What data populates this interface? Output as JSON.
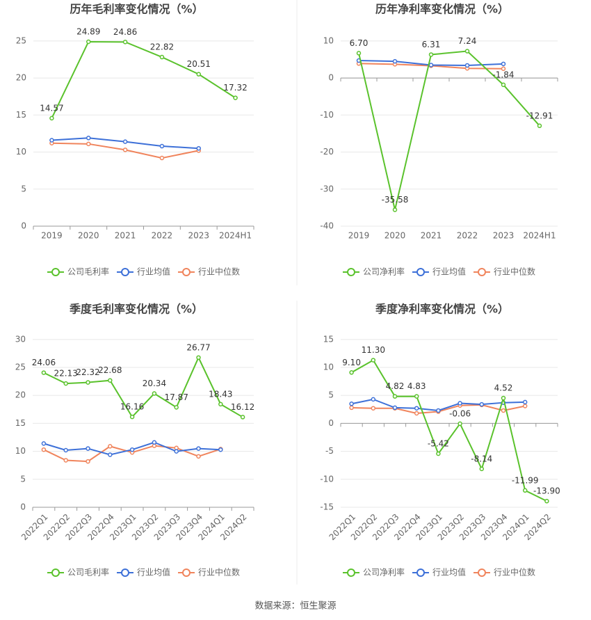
{
  "chart_data": [
    {
      "type": "line",
      "title": "历年毛利率变化情况（%）",
      "categories": [
        "2019",
        "2020",
        "2021",
        "2022",
        "2023",
        "2024H1"
      ],
      "series": [
        {
          "name": "公司毛利率",
          "color": "#5ac22c",
          "values": [
            14.57,
            24.89,
            24.86,
            22.82,
            20.51,
            17.32
          ],
          "value_labels": [
            "14.57",
            "24.89",
            "24.86",
            "22.82",
            "20.51",
            "17.32"
          ]
        },
        {
          "name": "行业均值",
          "color": "#3d70d8",
          "values": [
            11.6,
            11.9,
            11.4,
            10.8,
            10.5,
            null
          ]
        },
        {
          "name": "行业中位数",
          "color": "#f0845c",
          "values": [
            11.2,
            11.1,
            10.3,
            9.2,
            10.2,
            null
          ]
        }
      ],
      "ylim": [
        0,
        26.3
      ],
      "yticks": [
        0,
        5,
        10,
        15,
        20,
        25
      ],
      "grid": true
    },
    {
      "type": "line",
      "title": "历年净利率变化情况（%）",
      "categories": [
        "2019",
        "2020",
        "2021",
        "2022",
        "2023",
        "2024H1"
      ],
      "series": [
        {
          "name": "公司净利率",
          "color": "#5ac22c",
          "values": [
            6.7,
            -35.58,
            6.31,
            7.24,
            -1.84,
            -12.91
          ],
          "value_labels": [
            "6.70",
            "-35.58",
            "6.31",
            "7.24",
            "-1.84",
            "-12.91"
          ]
        },
        {
          "name": "行业均值",
          "color": "#3d70d8",
          "values": [
            4.7,
            4.5,
            3.5,
            3.4,
            3.8,
            null
          ]
        },
        {
          "name": "行业中位数",
          "color": "#f0845c",
          "values": [
            3.9,
            3.7,
            3.3,
            2.6,
            2.5,
            null
          ]
        }
      ],
      "ylim": [
        -40,
        12.6
      ],
      "yticks": [
        -40,
        -30,
        -20,
        -10,
        0,
        10
      ],
      "grid": true
    },
    {
      "type": "line",
      "title": "季度毛利率变化情况（%）",
      "categories": [
        "2022Q1",
        "2022Q2",
        "2022Q3",
        "2022Q4",
        "2023Q1",
        "2023Q2",
        "2023Q3",
        "2023Q4",
        "2024Q1",
        "2024Q2"
      ],
      "series": [
        {
          "name": "公司毛利率",
          "color": "#5ac22c",
          "values": [
            24.06,
            22.13,
            22.32,
            22.68,
            16.16,
            20.34,
            17.87,
            26.77,
            18.43,
            16.12
          ],
          "value_labels": [
            "24.06",
            "22.13",
            "22.32",
            "22.68",
            "16.16",
            "20.34",
            "17.87",
            "26.77",
            "18.43",
            "16.12"
          ]
        },
        {
          "name": "行业均值",
          "color": "#3d70d8",
          "values": [
            11.4,
            10.2,
            10.5,
            9.4,
            10.3,
            11.6,
            10.0,
            10.5,
            10.3,
            null
          ]
        },
        {
          "name": "行业中位数",
          "color": "#f0845c",
          "values": [
            10.3,
            8.4,
            8.2,
            10.9,
            9.8,
            11.0,
            10.6,
            9.1,
            10.4,
            null
          ]
        }
      ],
      "ylim": [
        0,
        31.6
      ],
      "yticks": [
        0,
        5,
        10,
        15,
        20,
        25,
        30
      ],
      "grid": true
    },
    {
      "type": "line",
      "title": "季度净利率变化情况（%）",
      "categories": [
        "2022Q1",
        "2022Q2",
        "2022Q3",
        "2022Q4",
        "2023Q1",
        "2023Q2",
        "2023Q3",
        "2023Q4",
        "2024Q1",
        "2024Q2"
      ],
      "series": [
        {
          "name": "公司净利率",
          "color": "#5ac22c",
          "values": [
            9.1,
            11.3,
            4.82,
            4.83,
            -5.42,
            -0.06,
            -8.14,
            4.52,
            -11.99,
            -13.9
          ],
          "value_labels": [
            "9.10",
            "11.30",
            "4.82",
            "4.83",
            "-5.42",
            "-0.06",
            "-8.14",
            "4.52",
            "-11.99",
            "-13.90"
          ]
        },
        {
          "name": "行业均值",
          "color": "#3d70d8",
          "values": [
            3.5,
            4.3,
            2.8,
            2.7,
            2.3,
            3.6,
            3.4,
            3.7,
            3.8,
            null
          ]
        },
        {
          "name": "行业中位数",
          "color": "#f0845c",
          "values": [
            2.8,
            2.7,
            2.7,
            1.8,
            2.1,
            3.2,
            3.3,
            2.3,
            3.1,
            null
          ]
        }
      ],
      "ylim": [
        -15,
        16.6
      ],
      "yticks": [
        -15,
        -10,
        -5,
        0,
        5,
        10,
        15
      ],
      "grid": true
    }
  ],
  "source": "数据来源：恒生聚源"
}
